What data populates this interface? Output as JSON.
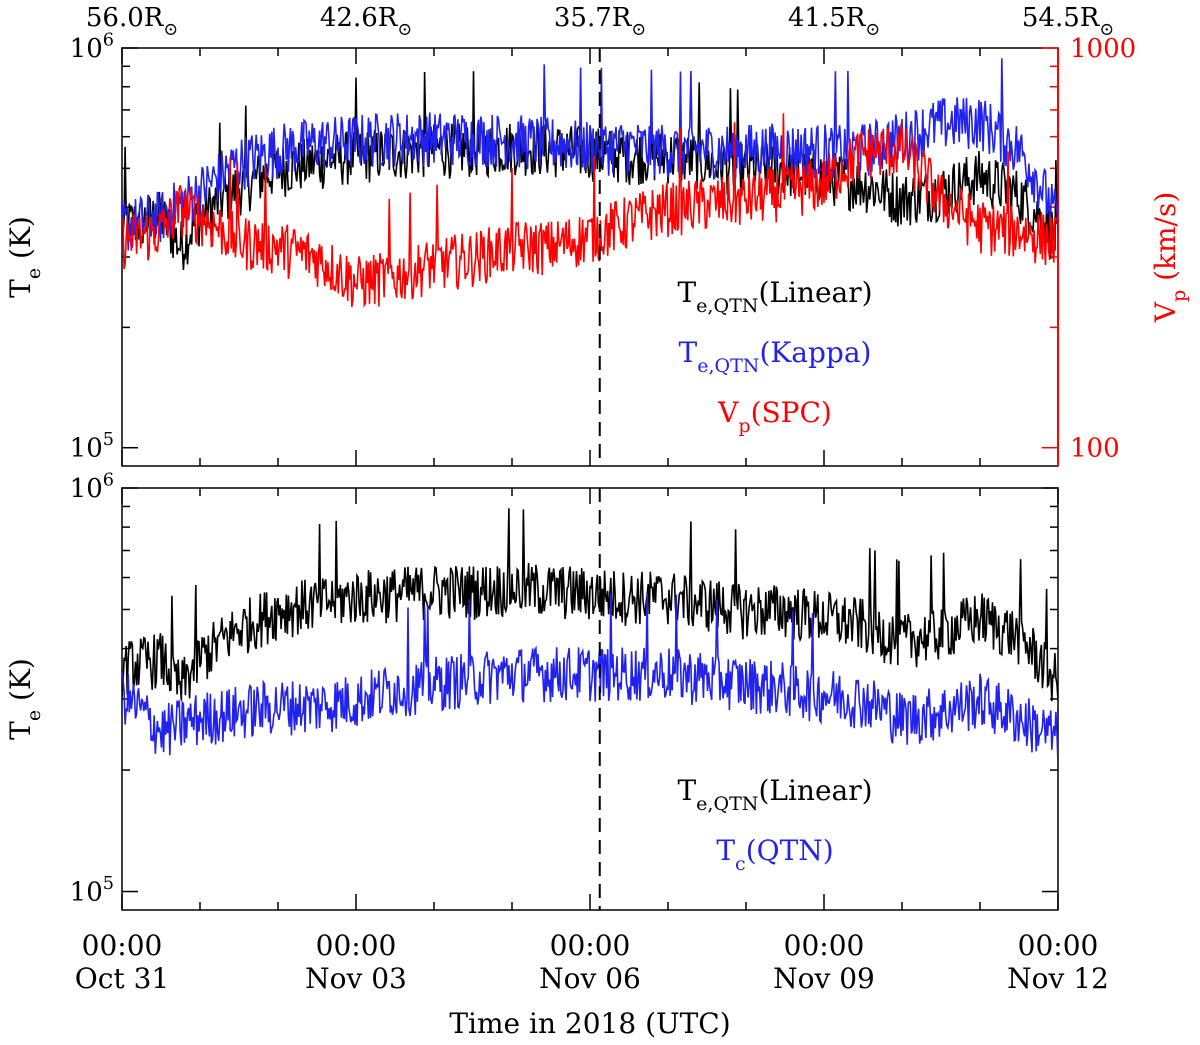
{
  "chart_data": [
    {
      "type": "line",
      "y_scale": "log",
      "ylabel": "T",
      "ylabel_sub": "e",
      "ylabel_unit": " (K)",
      "ylim": [
        90000,
        1000000
      ],
      "y_ticks": [
        {
          "value": 100000,
          "mantissa": "10",
          "exp": "5"
        },
        {
          "value": 1000000,
          "mantissa": "10",
          "exp": "6"
        }
      ],
      "y2label": "V",
      "y2label_sub": "p",
      "y2label_unit": " (km/s)",
      "y2lim": [
        90,
        1000
      ],
      "y2_ticks": [
        {
          "value": 100,
          "label": "100"
        },
        {
          "value": 1000,
          "label": "1000"
        }
      ],
      "top_axis_ticks": [
        {
          "value": "Oct 31 00:00",
          "label": "56.0R",
          "sun": "⊙"
        },
        {
          "value": "Nov 03 00:00",
          "label": "42.6R",
          "sun": "⊙"
        },
        {
          "value": "Nov 06 00:00",
          "label": "35.7R",
          "sun": "⊙"
        },
        {
          "value": "Nov 09 00:00",
          "label": "41.5R",
          "sun": "⊙"
        },
        {
          "value": "Nov 12 00:00",
          "label": "54.5R",
          "sun": "⊙"
        }
      ],
      "perihelion_marker": "Nov 06 03:00",
      "series": [
        {
          "name": "T",
          "name_sub": "e,QTN",
          "name_suffix": "(Linear)",
          "color": "#000000",
          "axis": "left",
          "points": [
            [
              "Oct 31 00:00",
              360000
            ],
            [
              "Oct 31 12:00",
              380000
            ],
            [
              "Oct 31 18:00",
              320000
            ],
            [
              "Nov 01 00:00",
              380000
            ],
            [
              "Nov 01 12:00",
              450000
            ],
            [
              "Nov 02 00:00",
              500000
            ],
            [
              "Nov 02 12:00",
              520000
            ],
            [
              "Nov 03 00:00",
              540000
            ],
            [
              "Nov 03 12:00",
              550000
            ],
            [
              "Nov 04 00:00",
              560000
            ],
            [
              "Nov 04 12:00",
              560000
            ],
            [
              "Nov 05 00:00",
              570000
            ],
            [
              "Nov 05 12:00",
              560000
            ],
            [
              "Nov 06 00:00",
              550000
            ],
            [
              "Nov 06 12:00",
              540000
            ],
            [
              "Nov 07 00:00",
              540000
            ],
            [
              "Nov 07 12:00",
              520000
            ],
            [
              "Nov 08 00:00",
              500000
            ],
            [
              "Nov 08 12:00",
              500000
            ],
            [
              "Nov 09 00:00",
              480000
            ],
            [
              "Nov 09 12:00",
              460000
            ],
            [
              "Nov 10 00:00",
              420000
            ],
            [
              "Nov 10 12:00",
              440000
            ],
            [
              "Nov 11 00:00",
              480000
            ],
            [
              "Nov 11 12:00",
              430000
            ],
            [
              "Nov 12 00:00",
              330000
            ]
          ]
        },
        {
          "name": "T",
          "name_sub": "e,QTN",
          "name_suffix": "(Kappa)",
          "color": "#2222ee",
          "axis": "left",
          "points": [
            [
              "Oct 31 00:00",
              360000
            ],
            [
              "Oct 31 12:00",
              380000
            ],
            [
              "Nov 01 00:00",
              440000
            ],
            [
              "Nov 01 12:00",
              520000
            ],
            [
              "Nov 02 00:00",
              560000
            ],
            [
              "Nov 02 12:00",
              580000
            ],
            [
              "Nov 03 00:00",
              590000
            ],
            [
              "Nov 03 12:00",
              600000
            ],
            [
              "Nov 04 00:00",
              600000
            ],
            [
              "Nov 04 12:00",
              600000
            ],
            [
              "Nov 05 00:00",
              590000
            ],
            [
              "Nov 05 12:00",
              580000
            ],
            [
              "Nov 06 00:00",
              570000
            ],
            [
              "Nov 06 12:00",
              570000
            ],
            [
              "Nov 07 00:00",
              560000
            ],
            [
              "Nov 07 12:00",
              560000
            ],
            [
              "Nov 08 00:00",
              560000
            ],
            [
              "Nov 08 12:00",
              560000
            ],
            [
              "Nov 09 00:00",
              560000
            ],
            [
              "Nov 09 12:00",
              560000
            ],
            [
              "Nov 10 00:00",
              600000
            ],
            [
              "Nov 10 12:00",
              650000
            ],
            [
              "Nov 11 00:00",
              660000
            ],
            [
              "Nov 11 12:00",
              560000
            ],
            [
              "Nov 12 00:00",
              370000
            ]
          ]
        },
        {
          "name": "V",
          "name_sub": "p",
          "name_suffix": "(SPC)",
          "color": "#ff0000",
          "axis": "right",
          "points": [
            [
              "Oct 31 00:00",
              330
            ],
            [
              "Oct 31 12:00",
              350
            ],
            [
              "Oct 31 18:00",
              400
            ],
            [
              "Nov 01 00:00",
              380
            ],
            [
              "Nov 01 12:00",
              330
            ],
            [
              "Nov 02 00:00",
              320
            ],
            [
              "Nov 02 12:00",
              300
            ],
            [
              "Nov 03 00:00",
              260
            ],
            [
              "Nov 03 12:00",
              270
            ],
            [
              "Nov 04 00:00",
              290
            ],
            [
              "Nov 04 12:00",
              300
            ],
            [
              "Nov 05 00:00",
              320
            ],
            [
              "Nov 05 12:00",
              320
            ],
            [
              "Nov 06 00:00",
              340
            ],
            [
              "Nov 06 12:00",
              370
            ],
            [
              "Nov 07 00:00",
              400
            ],
            [
              "Nov 07 12:00",
              410
            ],
            [
              "Nov 08 00:00",
              420
            ],
            [
              "Nov 08 12:00",
              440
            ],
            [
              "Nov 09 00:00",
              460
            ],
            [
              "Nov 09 12:00",
              550
            ],
            [
              "Nov 10 00:00",
              560
            ],
            [
              "Nov 10 12:00",
              420
            ],
            [
              "Nov 11 00:00",
              360
            ],
            [
              "Nov 11 12:00",
              350
            ],
            [
              "Nov 12 00:00",
              330
            ]
          ]
        }
      ]
    },
    {
      "type": "line",
      "y_scale": "log",
      "ylabel": "T",
      "ylabel_sub": "e",
      "ylabel_unit": " (K)",
      "ylim": [
        90000,
        1000000
      ],
      "y_ticks": [
        {
          "value": 100000,
          "mantissa": "10",
          "exp": "5"
        },
        {
          "value": 1000000,
          "mantissa": "10",
          "exp": "6"
        }
      ],
      "xlabel": "Time in 2018 (UTC)",
      "x_ticks": [
        {
          "value": "Oct 31 00:00",
          "time": "00:00",
          "date": "Oct 31"
        },
        {
          "value": "Nov 03 00:00",
          "time": "00:00",
          "date": "Nov 03"
        },
        {
          "value": "Nov 06 00:00",
          "time": "00:00",
          "date": "Nov 06"
        },
        {
          "value": "Nov 09 00:00",
          "time": "00:00",
          "date": "Nov 09"
        },
        {
          "value": "Nov 12 00:00",
          "time": "00:00",
          "date": "Nov 12"
        }
      ],
      "xlim": [
        "Oct 31 00:00",
        "Nov 12 00:00"
      ],
      "perihelion_marker": "Nov 06 03:00",
      "series": [
        {
          "name": "T",
          "name_sub": "e,QTN",
          "name_suffix": "(Linear)",
          "color": "#000000",
          "axis": "left",
          "points": [
            [
              "Oct 31 00:00",
              360000
            ],
            [
              "Oct 31 12:00",
              380000
            ],
            [
              "Oct 31 18:00",
              320000
            ],
            [
              "Nov 01 00:00",
              380000
            ],
            [
              "Nov 01 12:00",
              450000
            ],
            [
              "Nov 02 00:00",
              500000
            ],
            [
              "Nov 02 12:00",
              520000
            ],
            [
              "Nov 03 00:00",
              540000
            ],
            [
              "Nov 03 12:00",
              550000
            ],
            [
              "Nov 04 00:00",
              560000
            ],
            [
              "Nov 04 12:00",
              560000
            ],
            [
              "Nov 05 00:00",
              570000
            ],
            [
              "Nov 05 12:00",
              560000
            ],
            [
              "Nov 06 00:00",
              550000
            ],
            [
              "Nov 06 12:00",
              540000
            ],
            [
              "Nov 07 00:00",
              540000
            ],
            [
              "Nov 07 12:00",
              520000
            ],
            [
              "Nov 08 00:00",
              500000
            ],
            [
              "Nov 08 12:00",
              500000
            ],
            [
              "Nov 09 00:00",
              480000
            ],
            [
              "Nov 09 12:00",
              460000
            ],
            [
              "Nov 10 00:00",
              420000
            ],
            [
              "Nov 10 12:00",
              440000
            ],
            [
              "Nov 11 00:00",
              480000
            ],
            [
              "Nov 11 12:00",
              430000
            ],
            [
              "Nov 12 00:00",
              330000
            ]
          ]
        },
        {
          "name": "T",
          "name_sub": "c",
          "name_suffix": "(QTN)",
          "color": "#2222ee",
          "axis": "left",
          "points": [
            [
              "Oct 31 00:00",
              310000
            ],
            [
              "Oct 31 12:00",
              250000
            ],
            [
              "Nov 01 00:00",
              270000
            ],
            [
              "Nov 01 12:00",
              280000
            ],
            [
              "Nov 02 00:00",
              290000
            ],
            [
              "Nov 02 12:00",
              290000
            ],
            [
              "Nov 03 00:00",
              300000
            ],
            [
              "Nov 03 12:00",
              320000
            ],
            [
              "Nov 04 00:00",
              330000
            ],
            [
              "Nov 04 12:00",
              340000
            ],
            [
              "Nov 05 00:00",
              350000
            ],
            [
              "Nov 05 12:00",
              350000
            ],
            [
              "Nov 06 00:00",
              350000
            ],
            [
              "Nov 06 12:00",
              350000
            ],
            [
              "Nov 07 00:00",
              350000
            ],
            [
              "Nov 07 12:00",
              340000
            ],
            [
              "Nov 08 00:00",
              330000
            ],
            [
              "Nov 08 12:00",
              320000
            ],
            [
              "Nov 09 00:00",
              310000
            ],
            [
              "Nov 09 12:00",
              300000
            ],
            [
              "Nov 10 00:00",
              270000
            ],
            [
              "Nov 10 12:00",
              280000
            ],
            [
              "Nov 11 00:00",
              300000
            ],
            [
              "Nov 11 12:00",
              270000
            ],
            [
              "Nov 12 00:00",
              240000
            ]
          ]
        }
      ]
    }
  ]
}
